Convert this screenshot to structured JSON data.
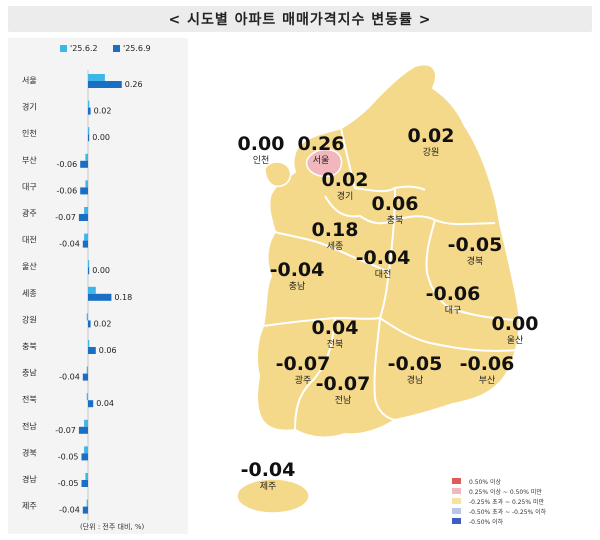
{
  "header": {
    "title": "< 시도별 아파트 매매가격지수 변동률 >"
  },
  "legend": [
    {
      "label": "'25.6.2",
      "color": "#3fb6e8"
    },
    {
      "label": "'25.6.9",
      "color": "#1a6fc4"
    }
  ],
  "unit_note": "(단위 : 전주 대비, %)",
  "scale_legend": [
    {
      "label": "0.50% 이상",
      "color": "#e05a5a"
    },
    {
      "label": "0.25% 이상 ~ 0.50% 미만",
      "color": "#f2b6bd"
    },
    {
      "label": "-0.25% 초과 ~ 0.25% 미만",
      "color": "#f5e4a0"
    },
    {
      "label": "-0.50% 초과 ~ -0.25% 이하",
      "color": "#b9c6ea"
    },
    {
      "label": "-0.50% 이하",
      "color": "#3e5fc1"
    }
  ],
  "chart_data": [
    {
      "type": "bar",
      "orientation": "horizontal",
      "categories": [
        "서울",
        "경기",
        "인천",
        "부산",
        "대구",
        "광주",
        "대전",
        "울산",
        "세종",
        "강원",
        "충북",
        "충남",
        "전북",
        "전남",
        "경북",
        "경남",
        "제주"
      ],
      "series": [
        {
          "name": "'25.6.2",
          "values": [
            0.13,
            0.01,
            0.01,
            -0.02,
            -0.02,
            -0.03,
            -0.03,
            0.0,
            0.06,
            -0.01,
            0.01,
            -0.01,
            -0.01,
            -0.03,
            -0.03,
            -0.02,
            -0.01
          ]
        },
        {
          "name": "'25.6.9",
          "values": [
            0.26,
            0.02,
            0.0,
            -0.06,
            -0.06,
            -0.07,
            -0.04,
            0.0,
            0.18,
            0.02,
            0.06,
            -0.04,
            0.04,
            -0.07,
            -0.05,
            -0.05,
            -0.04
          ]
        }
      ],
      "value_labels": [
        "0.26",
        "0.02",
        "0.00",
        "-0.06",
        "-0.06",
        "-0.07",
        "-0.04",
        "0.00",
        "0.18",
        "0.02",
        "0.06",
        "-0.04",
        "0.04",
        "-0.07",
        "-0.05",
        "-0.05",
        "-0.04"
      ],
      "xlim": [
        -0.09,
        0.28
      ]
    },
    {
      "type": "map",
      "regions": [
        {
          "name": "인천",
          "value": "0.00",
          "category": "-0.25% 초과 ~ 0.25% 미만"
        },
        {
          "name": "서울",
          "value": "0.26",
          "category": "0.25% 이상 ~ 0.50% 미만"
        },
        {
          "name": "경기",
          "value": "0.02",
          "category": "-0.25% 초과 ~ 0.25% 미만"
        },
        {
          "name": "강원",
          "value": "0.02",
          "category": "-0.25% 초과 ~ 0.25% 미만"
        },
        {
          "name": "충북",
          "value": "0.06",
          "category": "-0.25% 초과 ~ 0.25% 미만"
        },
        {
          "name": "세종",
          "value": "0.18",
          "category": "-0.25% 초과 ~ 0.25% 미만"
        },
        {
          "name": "대전",
          "value": "-0.04",
          "category": "-0.25% 초과 ~ 0.25% 미만"
        },
        {
          "name": "충남",
          "value": "-0.04",
          "category": "-0.25% 초과 ~ 0.25% 미만"
        },
        {
          "name": "경북",
          "value": "-0.05",
          "category": "-0.25% 초과 ~ 0.25% 미만"
        },
        {
          "name": "대구",
          "value": "-0.06",
          "category": "-0.25% 초과 ~ 0.25% 미만"
        },
        {
          "name": "전북",
          "value": "0.04",
          "category": "-0.25% 초과 ~ 0.25% 미만"
        },
        {
          "name": "울산",
          "value": "0.00",
          "category": "-0.25% 초과 ~ 0.25% 미만"
        },
        {
          "name": "광주",
          "value": "-0.07",
          "category": "-0.25% 초과 ~ 0.25% 미만"
        },
        {
          "name": "경남",
          "value": "-0.05",
          "category": "-0.25% 초과 ~ 0.25% 미만"
        },
        {
          "name": "부산",
          "value": "-0.06",
          "category": "-0.25% 초과 ~ 0.25% 미만"
        },
        {
          "name": "전남",
          "value": "-0.07",
          "category": "-0.25% 초과 ~ 0.25% 미만"
        },
        {
          "name": "제주",
          "value": "-0.04",
          "category": "-0.25% 초과 ~ 0.25% 미만"
        }
      ]
    }
  ]
}
